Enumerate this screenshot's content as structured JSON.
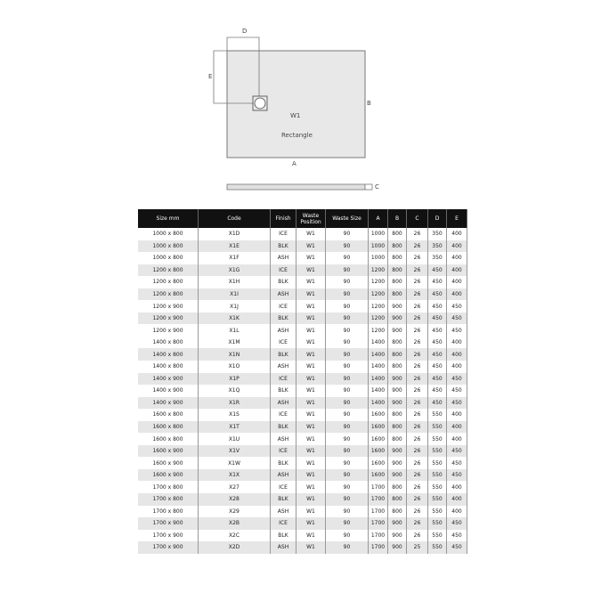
{
  "diagram": {
    "label_a": "A",
    "label_b": "B",
    "label_c": "C",
    "label_d": "D",
    "label_e": "E",
    "waste": "W1",
    "shape": "Rectangle"
  },
  "table": {
    "headers": [
      "Size mm",
      "Code",
      "Finish",
      "Waste Position",
      "Waste Size",
      "A",
      "B",
      "C",
      "D",
      "E"
    ],
    "rows": [
      [
        "1000 x 800",
        "X1D",
        "ICE",
        "W1",
        "90",
        "1000",
        "800",
        "26",
        "350",
        "400"
      ],
      [
        "1000 x 800",
        "X1E",
        "BLK",
        "W1",
        "90",
        "1000",
        "800",
        "26",
        "350",
        "400"
      ],
      [
        "1000 x 800",
        "X1F",
        "ASH",
        "W1",
        "90",
        "1000",
        "800",
        "26",
        "350",
        "400"
      ],
      [
        "1200 x 800",
        "X1G",
        "ICE",
        "W1",
        "90",
        "1200",
        "800",
        "26",
        "450",
        "400"
      ],
      [
        "1200 x 800",
        "X1H",
        "BLK",
        "W1",
        "90",
        "1200",
        "800",
        "26",
        "450",
        "400"
      ],
      [
        "1200 x 800",
        "X1I",
        "ASH",
        "W1",
        "90",
        "1200",
        "800",
        "26",
        "450",
        "400"
      ],
      [
        "1200 x 900",
        "X1J",
        "ICE",
        "W1",
        "90",
        "1200",
        "900",
        "26",
        "450",
        "450"
      ],
      [
        "1200 x 900",
        "X1K",
        "BLK",
        "W1",
        "90",
        "1200",
        "900",
        "26",
        "450",
        "450"
      ],
      [
        "1200 x 900",
        "X1L",
        "ASH",
        "W1",
        "90",
        "1200",
        "900",
        "26",
        "450",
        "450"
      ],
      [
        "1400 x 800",
        "X1M",
        "ICE",
        "W1",
        "90",
        "1400",
        "800",
        "26",
        "450",
        "400"
      ],
      [
        "1400 x 800",
        "X1N",
        "BLK",
        "W1",
        "90",
        "1400",
        "800",
        "26",
        "450",
        "400"
      ],
      [
        "1400 x 800",
        "X1O",
        "ASH",
        "W1",
        "90",
        "1400",
        "800",
        "26",
        "450",
        "400"
      ],
      [
        "1400 x 900",
        "X1P",
        "ICE",
        "W1",
        "90",
        "1400",
        "900",
        "26",
        "450",
        "450"
      ],
      [
        "1400 x 900",
        "X1Q",
        "BLK",
        "W1",
        "90",
        "1400",
        "900",
        "26",
        "450",
        "450"
      ],
      [
        "1400 x 900",
        "X1R",
        "ASH",
        "W1",
        "90",
        "1400",
        "900",
        "26",
        "450",
        "450"
      ],
      [
        "1600 x 800",
        "X1S",
        "ICE",
        "W1",
        "90",
        "1600",
        "800",
        "26",
        "550",
        "400"
      ],
      [
        "1600 x 800",
        "X1T",
        "BLK",
        "W1",
        "90",
        "1600",
        "800",
        "26",
        "550",
        "400"
      ],
      [
        "1600 x 800",
        "X1U",
        "ASH",
        "W1",
        "90",
        "1600",
        "800",
        "26",
        "550",
        "400"
      ],
      [
        "1600 x 900",
        "X1V",
        "ICE",
        "W1",
        "90",
        "1600",
        "900",
        "26",
        "550",
        "450"
      ],
      [
        "1600 x 900",
        "X1W",
        "BLK",
        "W1",
        "90",
        "1600",
        "900",
        "26",
        "550",
        "450"
      ],
      [
        "1600 x 900",
        "X1X",
        "ASH",
        "W1",
        "90",
        "1600",
        "900",
        "26",
        "550",
        "450"
      ],
      [
        "1700 x 800",
        "X27",
        "ICE",
        "W1",
        "90",
        "1700",
        "800",
        "26",
        "550",
        "400"
      ],
      [
        "1700 x 800",
        "X28",
        "BLK",
        "W1",
        "90",
        "1700",
        "800",
        "26",
        "550",
        "400"
      ],
      [
        "1700 x 800",
        "X29",
        "ASH",
        "W1",
        "90",
        "1700",
        "800",
        "26",
        "550",
        "400"
      ],
      [
        "1700 x 900",
        "X2B",
        "ICE",
        "W1",
        "90",
        "1700",
        "900",
        "26",
        "550",
        "450"
      ],
      [
        "1700 x 900",
        "X2C",
        "BLK",
        "W1",
        "90",
        "1700",
        "900",
        "26",
        "550",
        "450"
      ],
      [
        "1700 x 900",
        "X2D",
        "ASH",
        "W1",
        "90",
        "1700",
        "900",
        "25",
        "550",
        "450"
      ]
    ]
  }
}
